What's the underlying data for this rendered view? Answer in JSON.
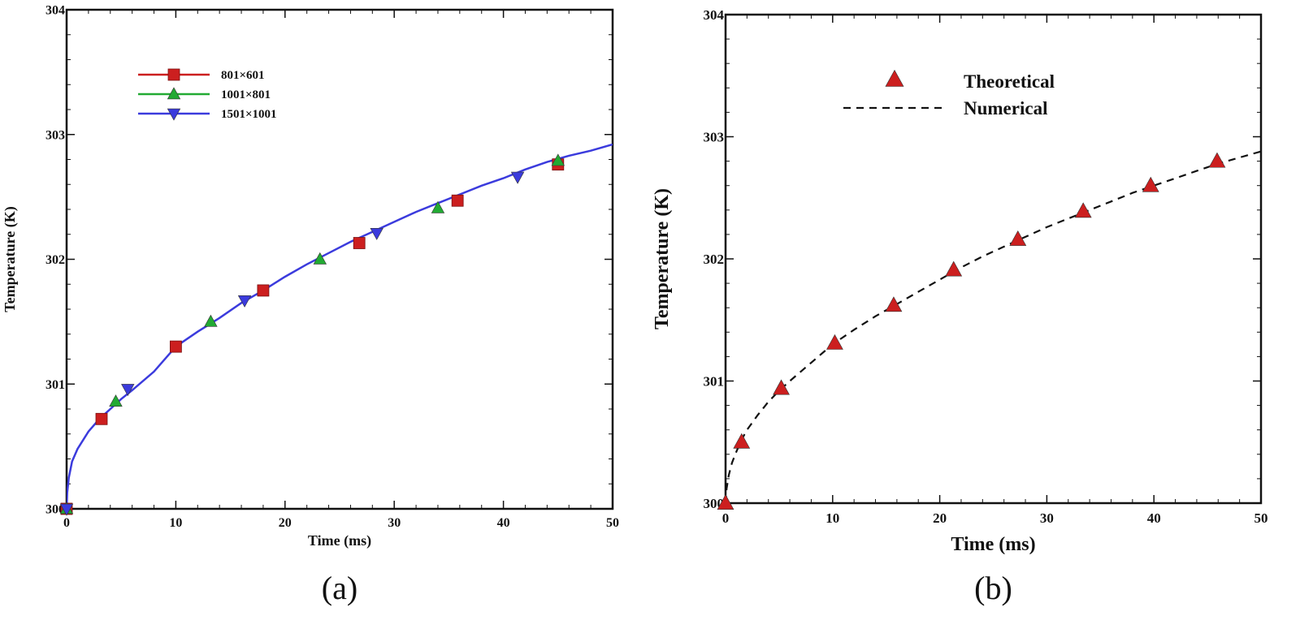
{
  "chart_data": [
    {
      "type": "line",
      "caption": "(a)",
      "xlabel": "Time (ms)",
      "ylabel": "Temperature (K)",
      "xlim": [
        0,
        50
      ],
      "ylim": [
        300,
        304
      ],
      "xticks": [
        0,
        10,
        20,
        30,
        40,
        50
      ],
      "yticks": [
        300,
        301,
        302,
        303,
        304
      ],
      "grid": false,
      "legend_position": "top-left",
      "curve": {
        "x": [
          0,
          0.05,
          0.2,
          0.5,
          1,
          2,
          3,
          4,
          5,
          6,
          8,
          10,
          12,
          14,
          16,
          18,
          20,
          22,
          24,
          26,
          28,
          30,
          32,
          34,
          36,
          38,
          40,
          42,
          44,
          46,
          48,
          50
        ],
        "y": [
          300.0,
          300.13,
          300.25,
          300.38,
          300.48,
          300.62,
          300.72,
          300.8,
          300.88,
          300.95,
          301.1,
          301.3,
          301.42,
          301.53,
          301.65,
          301.75,
          301.86,
          301.96,
          302.05,
          302.14,
          302.22,
          302.3,
          302.38,
          302.45,
          302.52,
          302.59,
          302.65,
          302.72,
          302.78,
          302.83,
          302.87,
          302.92
        ],
        "color": "#3b3bdd"
      },
      "series": [
        {
          "name": "801×601",
          "color": "#cc1f1f",
          "marker": "square",
          "x": [
            0,
            3.2,
            10,
            18,
            26.8,
            35.8,
            45
          ],
          "y": [
            300.0,
            300.72,
            301.3,
            301.75,
            302.13,
            302.47,
            302.76
          ]
        },
        {
          "name": "1001×801",
          "color": "#22aa33",
          "marker": "triangle-up",
          "x": [
            0,
            4.5,
            13.2,
            23.2,
            34,
            45
          ],
          "y": [
            300.0,
            300.86,
            301.5,
            302.0,
            302.41,
            302.79
          ]
        },
        {
          "name": "1501×1001",
          "color": "#3b3bdd",
          "marker": "triangle-down",
          "x": [
            0,
            5.6,
            16.3,
            28.4,
            41.3
          ],
          "y": [
            300.0,
            300.96,
            301.67,
            302.21,
            302.66
          ]
        }
      ]
    },
    {
      "type": "line",
      "caption": "(b)",
      "xlabel": "Time (ms)",
      "ylabel": "Temperature (K)",
      "xlim": [
        0,
        50
      ],
      "ylim": [
        300,
        304
      ],
      "xticks": [
        0,
        10,
        20,
        30,
        40,
        50
      ],
      "yticks": [
        300,
        301,
        302,
        303,
        304
      ],
      "grid": false,
      "legend_position": "top-center",
      "series": [
        {
          "name": "Theoretical",
          "color": "#cc1f1f",
          "marker": "triangle-up",
          "x": [
            0,
            1.5,
            5.2,
            10.2,
            15.7,
            21.3,
            27.3,
            33.4,
            39.7,
            45.9
          ],
          "y": [
            300.0,
            300.5,
            300.94,
            301.31,
            301.62,
            301.91,
            302.16,
            302.39,
            302.6,
            302.8
          ]
        },
        {
          "name": "Numerical",
          "color": "#111111",
          "line": "dashed",
          "x": [
            0,
            0.1,
            0.3,
            0.6,
            1,
            1.5,
            2,
            3,
            4,
            5,
            6,
            8,
            10,
            12,
            14,
            16,
            18,
            20,
            22,
            24,
            26,
            28,
            30,
            32,
            34,
            36,
            38,
            40,
            42,
            44,
            46,
            48,
            50
          ],
          "y": [
            300.0,
            300.12,
            300.23,
            300.33,
            300.42,
            300.52,
            300.6,
            300.72,
            300.83,
            300.92,
            301.0,
            301.15,
            301.3,
            301.42,
            301.53,
            301.63,
            301.73,
            301.83,
            301.93,
            302.02,
            302.1,
            302.18,
            302.26,
            302.33,
            302.4,
            302.47,
            302.54,
            302.6,
            302.66,
            302.72,
            302.78,
            302.83,
            302.88
          ]
        }
      ]
    }
  ]
}
